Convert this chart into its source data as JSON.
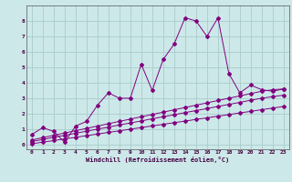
{
  "xlabel": "Windchill (Refroidissement éolien,°C)",
  "bg_color": "#cce8e8",
  "line_color": "#800080",
  "grid_color": "#aacccc",
  "xlim": [
    -0.5,
    23.5
  ],
  "ylim": [
    -0.3,
    9.0
  ],
  "xticks": [
    0,
    1,
    2,
    3,
    4,
    5,
    6,
    7,
    8,
    9,
    10,
    11,
    12,
    13,
    14,
    15,
    16,
    17,
    18,
    19,
    20,
    21,
    22,
    23
  ],
  "yticks": [
    0,
    1,
    2,
    3,
    4,
    5,
    6,
    7,
    8
  ],
  "series1_x": [
    0,
    1,
    2,
    3,
    4,
    5,
    6,
    7,
    8,
    9,
    10,
    11,
    12,
    13,
    14,
    15,
    16,
    17,
    18,
    19,
    20,
    21,
    22,
    23
  ],
  "series1_y": [
    0.65,
    1.1,
    0.85,
    0.15,
    1.2,
    1.5,
    2.55,
    3.35,
    3.0,
    3.0,
    5.2,
    3.5,
    5.5,
    6.5,
    8.2,
    8.0,
    7.0,
    8.2,
    4.6,
    3.35,
    3.85,
    3.55,
    3.45,
    3.6
  ],
  "series2_x": [
    0,
    1,
    2,
    3,
    4,
    5,
    6,
    7,
    8,
    9,
    10,
    11,
    12,
    13,
    14,
    15,
    16,
    17,
    18,
    19,
    20,
    21,
    22,
    23
  ],
  "series2_y": [
    0.3,
    0.45,
    0.6,
    0.75,
    0.9,
    1.05,
    1.2,
    1.35,
    1.5,
    1.65,
    1.8,
    1.95,
    2.1,
    2.25,
    2.4,
    2.55,
    2.7,
    2.85,
    3.0,
    3.15,
    3.3,
    3.45,
    3.55,
    3.6
  ],
  "series3_x": [
    0,
    1,
    2,
    3,
    4,
    5,
    6,
    7,
    8,
    9,
    10,
    11,
    12,
    13,
    14,
    15,
    16,
    17,
    18,
    19,
    20,
    21,
    22,
    23
  ],
  "series3_y": [
    0.2,
    0.33,
    0.47,
    0.6,
    0.73,
    0.87,
    1.0,
    1.13,
    1.27,
    1.4,
    1.53,
    1.67,
    1.8,
    1.93,
    2.07,
    2.2,
    2.33,
    2.47,
    2.6,
    2.73,
    2.87,
    3.0,
    3.1,
    3.2
  ],
  "series4_x": [
    0,
    1,
    2,
    3,
    4,
    5,
    6,
    7,
    8,
    9,
    10,
    11,
    12,
    13,
    14,
    15,
    16,
    17,
    18,
    19,
    20,
    21,
    22,
    23
  ],
  "series4_y": [
    0.05,
    0.16,
    0.26,
    0.37,
    0.47,
    0.58,
    0.68,
    0.79,
    0.89,
    1.0,
    1.1,
    1.21,
    1.31,
    1.42,
    1.52,
    1.63,
    1.73,
    1.84,
    1.94,
    2.05,
    2.15,
    2.26,
    2.36,
    2.47
  ]
}
